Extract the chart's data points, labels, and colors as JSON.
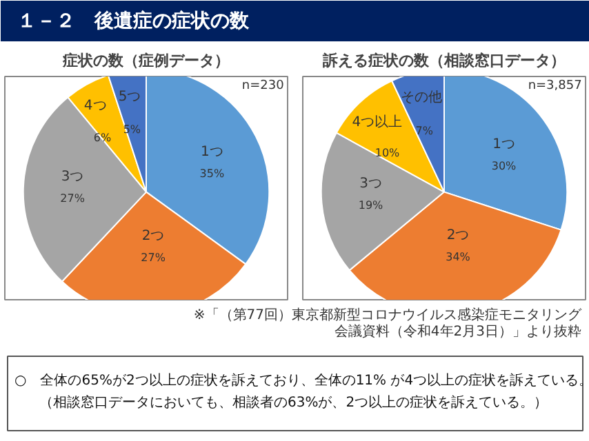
{
  "chart_data": [
    {
      "type": "other",
      "title": "１－２　後遺症の症状の数",
      "annotations": [
        "※「（第77回）東京都新型コロナウイルス感染症モニタリング",
        "会議資料（令和4年2月3日）」より抜粋",
        "○　全体の65%が2つ以上の症状を訴えており、全体の11% が4つ以上の症状を訴えている。",
        "（相談窓口データにおいても、相談者の63%が、2つ以上の症状を訴えている。）"
      ]
    },
    {
      "type": "pie",
      "title": "症状の数（症例データ）",
      "annotations": [
        "n=230"
      ],
      "categories": [
        "1つ",
        "2つ",
        "3つ",
        "4つ",
        "5つ"
      ],
      "values": [
        35,
        27,
        27,
        6,
        5
      ],
      "value_labels": [
        "35%",
        "27%",
        "27%",
        "6%",
        "5%"
      ],
      "colors": [
        "#5b9bd5",
        "#ed7d31",
        "#a5a5a5",
        "#ffc000",
        "#4472c4"
      ]
    },
    {
      "type": "pie",
      "title": "訴える症状の数（相談窓口データ）",
      "annotations": [
        "n=3,857"
      ],
      "categories": [
        "1つ",
        "2つ",
        "3つ",
        "4つ以上",
        "その他"
      ],
      "values": [
        30,
        34,
        19,
        10,
        7
      ],
      "value_labels": [
        "30%",
        "34%",
        "19%",
        "10%",
        "7%"
      ],
      "colors": [
        "#5b9bd5",
        "#ed7d31",
        "#a5a5a5",
        "#ffc000",
        "#4472c4"
      ]
    }
  ]
}
